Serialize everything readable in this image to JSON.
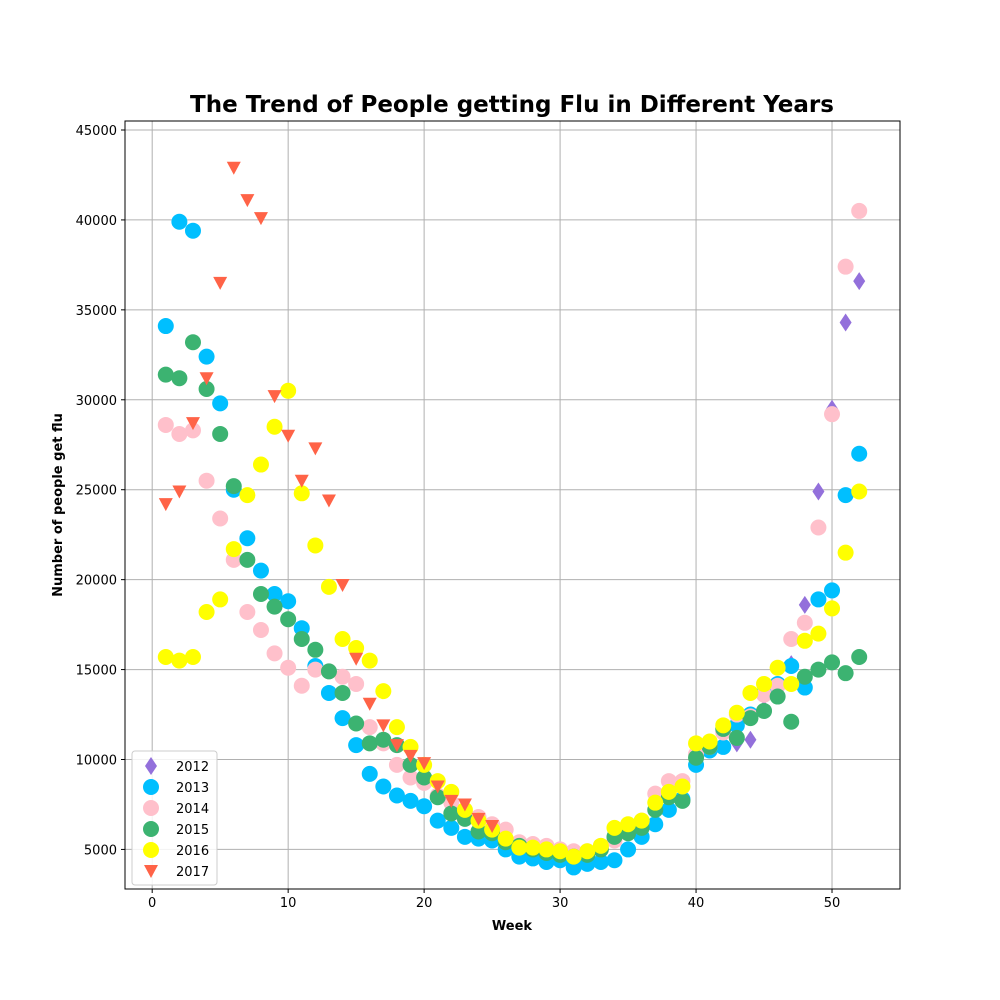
{
  "chart_data": {
    "type": "scatter",
    "title": "The Trend of People getting Flu  in Different Years",
    "xlabel": "Week",
    "ylabel": "Number of people get flu",
    "xlim": [
      -2,
      55
    ],
    "ylim": [
      2800,
      45500
    ],
    "xticks": [
      0,
      10,
      20,
      30,
      40,
      50
    ],
    "yticks": [
      5000,
      10000,
      15000,
      20000,
      25000,
      30000,
      35000,
      40000,
      45000
    ],
    "grid": true,
    "legend_position": "lower-left",
    "series": [
      {
        "name": "2012",
        "marker": "diamond",
        "color": "#9370DB",
        "points": [
          [
            43,
            10900
          ],
          [
            44,
            11100
          ],
          [
            45,
            12800
          ],
          [
            46,
            14000
          ],
          [
            47,
            15300
          ],
          [
            48,
            18600
          ],
          [
            49,
            24900
          ],
          [
            50,
            29500
          ],
          [
            51,
            34300
          ],
          [
            52,
            36600
          ]
        ]
      },
      {
        "name": "2013",
        "marker": "circle",
        "color": "#00BFFF",
        "points": [
          [
            1,
            34100
          ],
          [
            2,
            39900
          ],
          [
            3,
            39400
          ],
          [
            4,
            32400
          ],
          [
            5,
            29800
          ],
          [
            6,
            25000
          ],
          [
            7,
            22300
          ],
          [
            8,
            20500
          ],
          [
            9,
            19200
          ],
          [
            10,
            18800
          ],
          [
            11,
            17300
          ],
          [
            12,
            15200
          ],
          [
            13,
            13700
          ],
          [
            14,
            12300
          ],
          [
            15,
            10800
          ],
          [
            16,
            9200
          ],
          [
            17,
            8500
          ],
          [
            18,
            8000
          ],
          [
            19,
            7700
          ],
          [
            20,
            7400
          ],
          [
            21,
            6600
          ],
          [
            22,
            6200
          ],
          [
            23,
            5700
          ],
          [
            24,
            5600
          ],
          [
            25,
            5500
          ],
          [
            26,
            5000
          ],
          [
            27,
            4600
          ],
          [
            28,
            4500
          ],
          [
            29,
            4300
          ],
          [
            30,
            4400
          ],
          [
            31,
            4000
          ],
          [
            32,
            4200
          ],
          [
            33,
            4300
          ],
          [
            34,
            4400
          ],
          [
            35,
            5000
          ],
          [
            36,
            5700
          ],
          [
            37,
            6400
          ],
          [
            38,
            7200
          ],
          [
            39,
            7800
          ],
          [
            40,
            9700
          ],
          [
            41,
            10500
          ],
          [
            42,
            10700
          ],
          [
            43,
            11900
          ],
          [
            44,
            12500
          ],
          [
            45,
            13700
          ],
          [
            46,
            14200
          ],
          [
            47,
            15200
          ],
          [
            48,
            14000
          ],
          [
            49,
            18900
          ],
          [
            50,
            19400
          ],
          [
            51,
            24700
          ],
          [
            52,
            27000
          ]
        ]
      },
      {
        "name": "2014",
        "marker": "circle",
        "color": "#FFC0CB",
        "points": [
          [
            1,
            28600
          ],
          [
            2,
            28100
          ],
          [
            3,
            28300
          ],
          [
            4,
            25500
          ],
          [
            5,
            23400
          ],
          [
            6,
            21100
          ],
          [
            7,
            18200
          ],
          [
            8,
            17200
          ],
          [
            9,
            15900
          ],
          [
            10,
            15100
          ],
          [
            11,
            14100
          ],
          [
            12,
            15000
          ],
          [
            13,
            14900
          ],
          [
            14,
            14600
          ],
          [
            15,
            14200
          ],
          [
            16,
            11800
          ],
          [
            17,
            10900
          ],
          [
            18,
            9700
          ],
          [
            19,
            9000
          ],
          [
            20,
            8700
          ],
          [
            21,
            8000
          ],
          [
            22,
            7600
          ],
          [
            23,
            7000
          ],
          [
            24,
            6800
          ],
          [
            25,
            6400
          ],
          [
            26,
            6100
          ],
          [
            27,
            5400
          ],
          [
            28,
            5300
          ],
          [
            29,
            5200
          ],
          [
            30,
            5000
          ],
          [
            31,
            4900
          ],
          [
            32,
            4900
          ],
          [
            33,
            5200
          ],
          [
            34,
            5500
          ],
          [
            35,
            6000
          ],
          [
            36,
            6600
          ],
          [
            37,
            8100
          ],
          [
            38,
            8800
          ],
          [
            39,
            8800
          ],
          [
            40,
            10300
          ],
          [
            41,
            10700
          ],
          [
            42,
            11500
          ],
          [
            43,
            12500
          ],
          [
            44,
            12400
          ],
          [
            45,
            13600
          ],
          [
            46,
            14100
          ],
          [
            47,
            16700
          ],
          [
            48,
            17600
          ],
          [
            49,
            22900
          ],
          [
            50,
            29200
          ],
          [
            51,
            37400
          ],
          [
            52,
            40500
          ]
        ]
      },
      {
        "name": "2015",
        "marker": "circle",
        "color": "#3CB371",
        "points": [
          [
            1,
            31400
          ],
          [
            2,
            31200
          ],
          [
            3,
            33200
          ],
          [
            4,
            30600
          ],
          [
            5,
            28100
          ],
          [
            6,
            25200
          ],
          [
            7,
            21100
          ],
          [
            8,
            19200
          ],
          [
            9,
            18500
          ],
          [
            10,
            17800
          ],
          [
            11,
            16700
          ],
          [
            12,
            16100
          ],
          [
            13,
            14900
          ],
          [
            14,
            13700
          ],
          [
            15,
            12000
          ],
          [
            16,
            10900
          ],
          [
            17,
            11100
          ],
          [
            18,
            10800
          ],
          [
            19,
            9700
          ],
          [
            20,
            9000
          ],
          [
            21,
            7900
          ],
          [
            22,
            7000
          ],
          [
            23,
            6700
          ],
          [
            24,
            6000
          ],
          [
            25,
            5900
          ],
          [
            26,
            5400
          ],
          [
            27,
            5200
          ],
          [
            28,
            5000
          ],
          [
            29,
            4800
          ],
          [
            30,
            4700
          ],
          [
            31,
            4600
          ],
          [
            32,
            4700
          ],
          [
            33,
            5000
          ],
          [
            34,
            5700
          ],
          [
            35,
            5900
          ],
          [
            36,
            6200
          ],
          [
            37,
            7200
          ],
          [
            38,
            7900
          ],
          [
            39,
            7700
          ],
          [
            40,
            10100
          ],
          [
            41,
            10700
          ],
          [
            42,
            11700
          ],
          [
            43,
            11200
          ],
          [
            44,
            12300
          ],
          [
            45,
            12700
          ],
          [
            46,
            13500
          ],
          [
            47,
            12100
          ],
          [
            48,
            14600
          ],
          [
            49,
            15000
          ],
          [
            50,
            15400
          ],
          [
            51,
            14800
          ],
          [
            52,
            15700
          ]
        ]
      },
      {
        "name": "2016",
        "marker": "circle",
        "color": "#FFFF00",
        "points": [
          [
            1,
            15700
          ],
          [
            2,
            15500
          ],
          [
            3,
            15700
          ],
          [
            4,
            18200
          ],
          [
            5,
            18900
          ],
          [
            6,
            21700
          ],
          [
            7,
            24700
          ],
          [
            8,
            26400
          ],
          [
            9,
            28500
          ],
          [
            10,
            30500
          ],
          [
            11,
            24800
          ],
          [
            12,
            21900
          ],
          [
            13,
            19600
          ],
          [
            14,
            16700
          ],
          [
            15,
            16200
          ],
          [
            16,
            15500
          ],
          [
            17,
            13800
          ],
          [
            18,
            11800
          ],
          [
            19,
            10700
          ],
          [
            20,
            9700
          ],
          [
            21,
            8800
          ],
          [
            22,
            8200
          ],
          [
            23,
            7200
          ],
          [
            24,
            6600
          ],
          [
            25,
            6100
          ],
          [
            26,
            5600
          ],
          [
            27,
            5100
          ],
          [
            28,
            5100
          ],
          [
            29,
            5000
          ],
          [
            30,
            4900
          ],
          [
            31,
            4600
          ],
          [
            32,
            4900
          ],
          [
            33,
            5200
          ],
          [
            34,
            6200
          ],
          [
            35,
            6400
          ],
          [
            36,
            6600
          ],
          [
            37,
            7600
          ],
          [
            38,
            8200
          ],
          [
            39,
            8500
          ],
          [
            40,
            10900
          ],
          [
            41,
            11000
          ],
          [
            42,
            11900
          ],
          [
            43,
            12600
          ],
          [
            44,
            13700
          ],
          [
            45,
            14200
          ],
          [
            46,
            15100
          ],
          [
            47,
            14200
          ],
          [
            48,
            16600
          ],
          [
            49,
            17000
          ],
          [
            50,
            18400
          ],
          [
            51,
            21500
          ],
          [
            52,
            24900
          ]
        ]
      },
      {
        "name": "2017",
        "marker": "triangle-down",
        "color": "#FF6347",
        "points": [
          [
            1,
            24200
          ],
          [
            2,
            24900
          ],
          [
            3,
            28700
          ],
          [
            4,
            31200
          ],
          [
            5,
            36500
          ],
          [
            6,
            42900
          ],
          [
            7,
            41100
          ],
          [
            8,
            40100
          ],
          [
            9,
            30200
          ],
          [
            10,
            28000
          ],
          [
            11,
            25500
          ],
          [
            12,
            27300
          ],
          [
            13,
            24400
          ],
          [
            14,
            19700
          ],
          [
            15,
            15600
          ],
          [
            16,
            13100
          ],
          [
            17,
            11900
          ],
          [
            18,
            10800
          ],
          [
            19,
            10200
          ],
          [
            20,
            9800
          ],
          [
            21,
            8500
          ],
          [
            22,
            7700
          ],
          [
            23,
            7500
          ],
          [
            24,
            6700
          ],
          [
            25,
            6300
          ]
        ]
      }
    ]
  }
}
